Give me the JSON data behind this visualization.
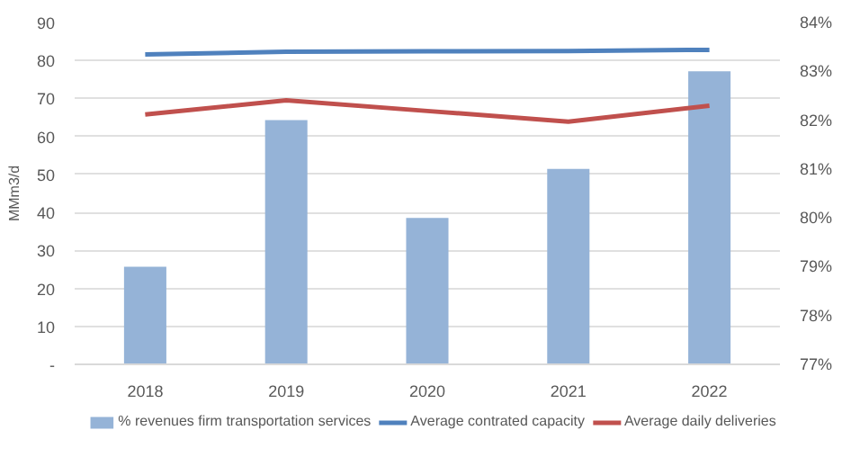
{
  "chart_data": {
    "type": "bar",
    "ylabel": "MMm3/d",
    "categories": [
      "2018",
      "2019",
      "2020",
      "2021",
      "2022"
    ],
    "series": [
      {
        "name": "% revenues firm transportation services",
        "color": "#95b3d7",
        "axis": "y2",
        "values": [
          79,
          82,
          80,
          81,
          83
        ]
      },
      {
        "name": "Average contrated capacity",
        "type": "line",
        "color": "#4f81bd",
        "values": [
          81.6,
          82.3,
          82.4,
          82.5,
          82.8
        ]
      },
      {
        "name": "Average daily deliveries",
        "type": "line",
        "color": "#c0504d",
        "values": [
          65.8,
          69.5,
          66.7,
          63.9,
          68.1
        ]
      }
    ],
    "ylim": [
      0,
      90
    ],
    "yticks": [
      {
        "value": 0,
        "label": "-"
      },
      10,
      20,
      30,
      40,
      50,
      60,
      70,
      80,
      90
    ],
    "y2lim": [
      77,
      84
    ],
    "y2ticks": [
      {
        "value": 77,
        "label": "77%"
      },
      {
        "value": 78,
        "label": "78%"
      },
      {
        "value": 79,
        "label": "79%"
      },
      {
        "value": 80,
        "label": "80%"
      },
      {
        "value": 81,
        "label": "81%"
      },
      {
        "value": 82,
        "label": "82%"
      },
      {
        "value": 83,
        "label": "83%"
      },
      {
        "value": 84,
        "label": "84%"
      }
    ],
    "grid": "y",
    "legend": "bottom",
    "marker": "none",
    "line_style": "solid"
  }
}
